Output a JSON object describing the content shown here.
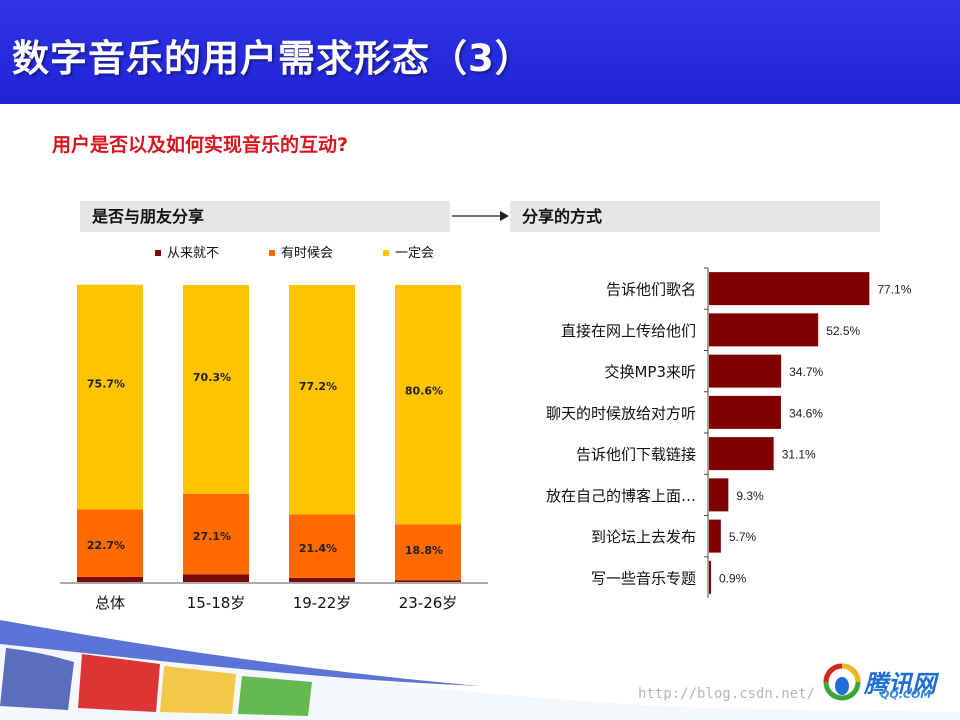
{
  "slide": {
    "title": "数字音乐的用户需求形态（3）",
    "subtitle": "用户是否以及如何实现音乐的互动?",
    "left_header": "是否与朋友分享",
    "right_header": "分享的方式",
    "watermark": "http://blog.csdn.net/...",
    "logo_text": "腾讯网",
    "logo_sub": "QQ.COM"
  },
  "chart_data": [
    {
      "type": "bar",
      "stacked": true,
      "title": "是否与朋友分享",
      "categories": [
        "总体",
        "15-18岁",
        "19-22岁",
        "23-26岁"
      ],
      "series": [
        {
          "name": "从来就不",
          "color": "#7a0b0b",
          "values": [
            1.7,
            2.6,
            1.4,
            0.6
          ],
          "labels": [
            "1.70%",
            "2.60%",
            "1.40%",
            "0.60%"
          ]
        },
        {
          "name": "有时候会",
          "color": "#ff6a00",
          "values": [
            22.7,
            27.1,
            21.4,
            18.8
          ],
          "labels": [
            "22.7%",
            "27.1%",
            "21.4%",
            "18.8%"
          ]
        },
        {
          "name": "一定会",
          "color": "#ffc400",
          "values": [
            75.7,
            70.3,
            77.2,
            80.6
          ],
          "labels": [
            "75.7%",
            "70.3%",
            "77.2%",
            "80.6%"
          ]
        }
      ],
      "ylim": [
        0,
        100
      ],
      "legend": "top"
    },
    {
      "type": "bar",
      "orientation": "horizontal",
      "title": "分享的方式",
      "categories": [
        "告诉他们歌名",
        "直接在网上传给他们",
        "交换MP3来听",
        "聊天的时候放给对方听",
        "告诉他们下载链接",
        "放在自己的博客上面…",
        "到论坛上去发布",
        "写一些音乐专题"
      ],
      "values": [
        77.1,
        52.5,
        34.7,
        34.6,
        31.1,
        9.3,
        5.7,
        0.9
      ],
      "labels": [
        "77.1%",
        "52.5%",
        "34.7%",
        "34.6%",
        "31.1%",
        "9.3%",
        "5.7%",
        "0.9%"
      ],
      "color": "#800000"
    }
  ]
}
